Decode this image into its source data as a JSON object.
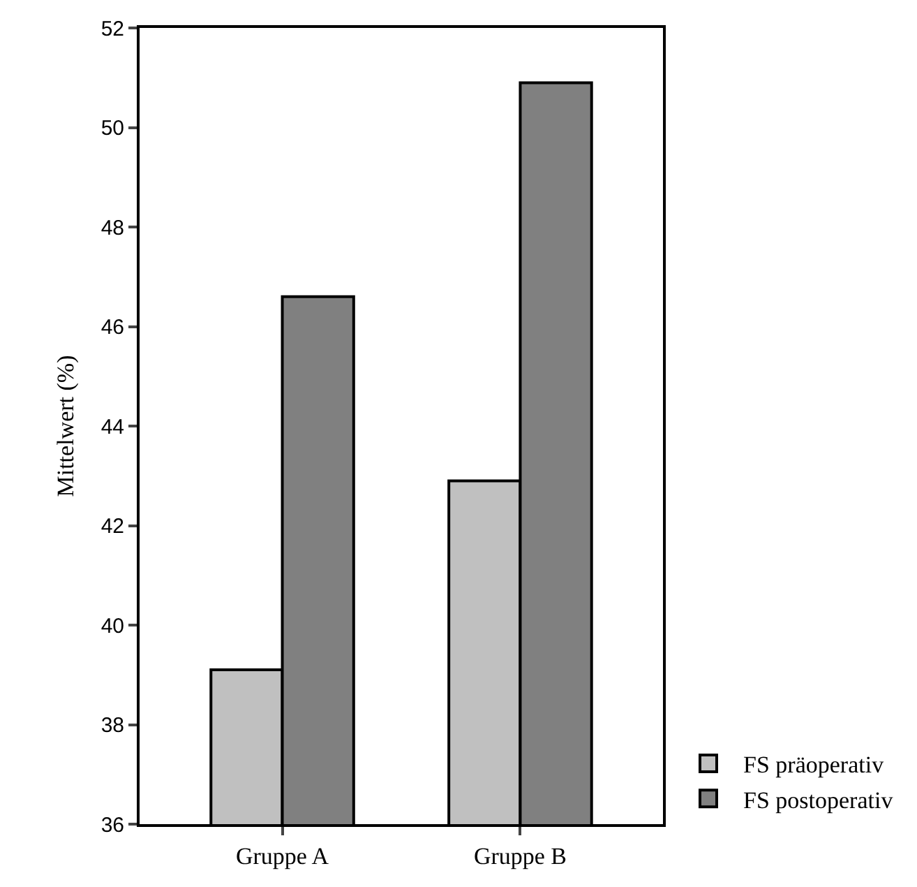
{
  "chart_data": {
    "type": "bar",
    "ylabel": "Mittelwert (%)",
    "categories": [
      "Gruppe A",
      "Gruppe B"
    ],
    "series": [
      {
        "name": "FS präoperativ",
        "color": "#c0c0c0",
        "values": [
          39.1,
          42.9
        ]
      },
      {
        "name": "FS postoperativ",
        "color": "#808080",
        "values": [
          46.6,
          50.9
        ]
      }
    ],
    "ylim": [
      36,
      52
    ],
    "yticks": [
      36,
      38,
      40,
      42,
      44,
      46,
      48,
      50,
      52
    ],
    "legend": "bottom right"
  }
}
